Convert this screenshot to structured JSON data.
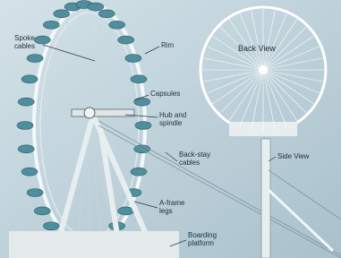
{
  "labels": {
    "spoke_cables": "Spoke cables",
    "rim": "Rim",
    "capsules": "Capsules",
    "hub_and_spindle": "Hub and spindle",
    "back_stay_cables": "Back-stay cables",
    "a_frame_legs": "A-frame legs",
    "boarding_platform": "Boarding platform",
    "back_view": "Back View",
    "side_view": "Side View"
  }
}
